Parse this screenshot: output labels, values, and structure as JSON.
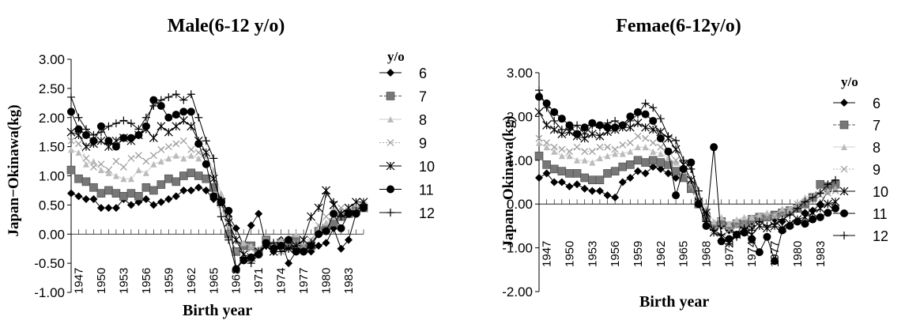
{
  "chart_data": [
    {
      "type": "line",
      "title": "Male(6-12 y/o)",
      "xlabel": "Birth year",
      "ylabel": "Japan−Okinawa(kg)",
      "legend_title": "y/o",
      "legend_position": "right",
      "grid": false,
      "ylim": [
        -1.0,
        3.0
      ],
      "y_ticks": [
        "3.00",
        "2.50",
        "2.00",
        "1.50",
        "1.00",
        "0.50",
        "0.00",
        "-0.50",
        "-1.00"
      ],
      "x_ticks": [
        "1947",
        "1950",
        "1953",
        "1956",
        "1959",
        "1962",
        "1965",
        "1968",
        "1971",
        "1974",
        "1977",
        "1980",
        "1983"
      ],
      "x": [
        1946,
        1947,
        1948,
        1949,
        1950,
        1951,
        1952,
        1953,
        1954,
        1955,
        1956,
        1957,
        1958,
        1959,
        1960,
        1961,
        1962,
        1963,
        1964,
        1965,
        1966,
        1967,
        1968,
        1969,
        1970,
        1971,
        1972,
        1973,
        1974,
        1975,
        1976,
        1977,
        1978,
        1979,
        1980,
        1981,
        1982,
        1983,
        1984,
        1985
      ],
      "series": [
        {
          "name": "6",
          "values": [
            0.7,
            0.65,
            0.6,
            0.6,
            0.45,
            0.45,
            0.45,
            0.6,
            0.5,
            0.55,
            0.6,
            0.5,
            0.55,
            0.6,
            0.65,
            0.75,
            0.75,
            0.8,
            0.75,
            0.6,
            0.6,
            0.3,
            0.1,
            -0.2,
            0.15,
            0.35,
            -0.2,
            -0.3,
            -0.1,
            -0.5,
            -0.3,
            -0.25,
            -0.3,
            -0.2,
            -0.15,
            0.1,
            -0.25,
            -0.1,
            0.35,
            0.5
          ]
        },
        {
          "name": "7",
          "values": [
            1.1,
            0.95,
            0.9,
            0.8,
            0.7,
            0.75,
            0.7,
            0.65,
            0.7,
            0.65,
            0.8,
            0.75,
            0.85,
            0.95,
            0.9,
            1.0,
            1.05,
            1.0,
            0.95,
            0.8,
            0.55,
            0.0,
            -0.3,
            -0.2,
            -0.2,
            -0.3,
            -0.1,
            -0.2,
            -0.15,
            -0.2,
            -0.1,
            -0.25,
            -0.2,
            0.05,
            0.1,
            0.2,
            0.3,
            0.35,
            0.4,
            0.45
          ]
        },
        {
          "name": "8",
          "values": [
            1.45,
            1.4,
            1.2,
            1.25,
            1.1,
            1.05,
            1.0,
            0.95,
            0.95,
            1.1,
            1.05,
            1.2,
            1.25,
            1.3,
            1.35,
            1.3,
            1.35,
            1.3,
            1.35,
            1.1,
            0.7,
            0.3,
            -0.1,
            -0.15,
            -0.2,
            -0.25,
            -0.1,
            -0.15,
            -0.1,
            -0.05,
            0.0,
            -0.1,
            -0.1,
            0.1,
            0.2,
            0.3,
            0.4,
            0.35,
            0.4,
            0.45
          ]
        },
        {
          "name": "9",
          "values": [
            1.6,
            1.55,
            1.3,
            1.15,
            1.2,
            1.1,
            1.25,
            1.15,
            1.3,
            1.35,
            1.25,
            1.35,
            1.45,
            1.5,
            1.55,
            1.6,
            1.45,
            1.4,
            1.35,
            1.0,
            0.5,
            0.1,
            -0.3,
            -0.35,
            -0.25,
            -0.35,
            -0.1,
            -0.2,
            -0.3,
            -0.1,
            -0.15,
            -0.2,
            -0.1,
            0.15,
            0.3,
            0.4,
            0.45,
            0.4,
            0.45,
            0.5
          ]
        },
        {
          "name": "10",
          "values": [
            1.75,
            1.7,
            1.5,
            1.55,
            1.6,
            1.5,
            1.6,
            1.65,
            1.6,
            1.7,
            1.8,
            1.65,
            1.85,
            1.75,
            1.85,
            1.95,
            1.85,
            1.6,
            1.4,
            0.95,
            0.55,
            0.2,
            -0.1,
            -0.35,
            -0.4,
            -0.3,
            -0.2,
            -0.3,
            -0.2,
            -0.25,
            -0.2,
            -0.1,
            0.3,
            0.45,
            0.75,
            0.5,
            0.35,
            0.45,
            0.55,
            0.55
          ]
        },
        {
          "name": "11",
          "values": [
            2.1,
            1.8,
            1.7,
            1.6,
            1.85,
            1.6,
            1.5,
            1.65,
            1.65,
            1.7,
            1.85,
            2.3,
            2.2,
            2.0,
            2.05,
            2.1,
            2.1,
            1.55,
            1.2,
            0.65,
            0.55,
            0.4,
            -0.6,
            -0.45,
            -0.4,
            -0.35,
            -0.15,
            -0.25,
            -0.2,
            -0.1,
            -0.3,
            -0.3,
            -0.2,
            0.0,
            0.05,
            0.35,
            0.1,
            0.35,
            0.35,
            0.45
          ]
        },
        {
          "name": "12",
          "values": [
            2.35,
            2.0,
            1.8,
            1.7,
            1.75,
            1.85,
            1.9,
            1.95,
            1.9,
            1.8,
            2.0,
            2.2,
            2.3,
            2.35,
            2.4,
            2.3,
            2.4,
            2.0,
            1.6,
            1.3,
            0.3,
            -0.1,
            -0.6,
            -0.4,
            -0.5,
            -0.35,
            -0.2,
            -0.15,
            -0.3,
            -0.25,
            -0.2,
            -0.3,
            -0.15,
            0.0,
            0.7,
            0.55,
            0.3,
            0.35,
            0.4,
            0.5
          ]
        }
      ]
    },
    {
      "type": "line",
      "title": "Femae(6-12y/o)",
      "xlabel": "Birth year",
      "ylabel": "Japan−Okinawa(kg)",
      "legend_title": "y/o",
      "legend_position": "right",
      "grid": false,
      "ylim": [
        -2.0,
        3.0
      ],
      "y_ticks": [
        "3.00",
        "2.00",
        "1.00",
        "0.00",
        "-1.00",
        "-2.00"
      ],
      "x_ticks": [
        "1947",
        "1950",
        "1953",
        "1956",
        "1959",
        "1962",
        "1965",
        "1968",
        "1971",
        "1974",
        "1977",
        "1980",
        "1983"
      ],
      "x": [
        1946,
        1947,
        1948,
        1949,
        1950,
        1951,
        1952,
        1953,
        1954,
        1955,
        1956,
        1957,
        1958,
        1959,
        1960,
        1961,
        1962,
        1963,
        1964,
        1965,
        1966,
        1967,
        1968,
        1969,
        1970,
        1971,
        1972,
        1973,
        1974,
        1975,
        1976,
        1977,
        1978,
        1979,
        1980,
        1981,
        1982,
        1983,
        1984,
        1985
      ],
      "series": [
        {
          "name": "6",
          "values": [
            0.6,
            0.7,
            0.5,
            0.5,
            0.4,
            0.45,
            0.35,
            0.3,
            0.3,
            0.2,
            0.15,
            0.5,
            0.6,
            0.75,
            0.7,
            0.85,
            0.8,
            0.7,
            0.6,
            0.6,
            0.45,
            0.1,
            -0.2,
            -0.55,
            -0.5,
            -0.6,
            -0.7,
            -0.4,
            -0.5,
            -0.35,
            -0.3,
            -0.35,
            -0.4,
            -0.2,
            -0.1,
            -0.2,
            -0.15,
            0.0,
            0.3,
            0.4
          ]
        },
        {
          "name": "7",
          "values": [
            1.1,
            0.9,
            0.8,
            0.75,
            0.7,
            0.7,
            0.6,
            0.55,
            0.55,
            0.7,
            0.75,
            0.85,
            0.9,
            1.0,
            0.95,
            1.0,
            0.95,
            0.9,
            0.75,
            0.6,
            0.35,
            0.0,
            -0.3,
            -0.5,
            -0.4,
            -0.5,
            -0.45,
            -0.45,
            -0.35,
            -0.3,
            -0.3,
            -0.25,
            -0.2,
            -0.15,
            -0.1,
            0.0,
            0.15,
            0.45,
            0.4,
            0.45
          ]
        },
        {
          "name": "8",
          "values": [
            1.4,
            1.3,
            1.2,
            1.1,
            1.1,
            1.0,
            1.0,
            0.95,
            1.05,
            1.1,
            1.15,
            1.15,
            1.2,
            1.3,
            1.3,
            1.2,
            1.15,
            1.05,
            0.95,
            0.8,
            0.5,
            0.15,
            -0.1,
            -0.4,
            -0.3,
            -0.45,
            -0.35,
            -0.3,
            -0.3,
            -0.25,
            -0.2,
            -0.25,
            -0.1,
            -0.1,
            0.0,
            0.15,
            0.2,
            0.3,
            0.3,
            0.35
          ]
        },
        {
          "name": "9",
          "values": [
            1.5,
            1.4,
            1.3,
            1.25,
            1.2,
            1.3,
            1.2,
            1.2,
            1.3,
            1.3,
            1.25,
            1.35,
            1.4,
            1.55,
            1.5,
            1.4,
            1.3,
            1.2,
            1.0,
            0.75,
            0.4,
            0.0,
            -0.2,
            -0.6,
            -0.5,
            -0.6,
            -0.5,
            -0.45,
            -0.5,
            -0.35,
            -0.3,
            -0.3,
            -0.25,
            -0.15,
            0.0,
            0.05,
            0.1,
            0.2,
            0.25,
            0.3
          ]
        },
        {
          "name": "10",
          "values": [
            2.1,
            1.8,
            1.7,
            1.6,
            1.65,
            1.55,
            1.5,
            1.6,
            1.55,
            1.65,
            1.7,
            1.75,
            1.75,
            1.85,
            1.75,
            1.7,
            1.65,
            1.5,
            1.25,
            0.9,
            0.55,
            0.05,
            -0.2,
            -0.65,
            -0.75,
            -0.9,
            -0.7,
            -0.6,
            -0.7,
            -0.5,
            -0.55,
            -0.5,
            -0.55,
            -0.45,
            -0.35,
            -0.3,
            -0.2,
            -0.1,
            0.0,
            0.05
          ]
        },
        {
          "name": "11",
          "values": [
            2.45,
            2.3,
            2.1,
            1.95,
            1.8,
            1.6,
            1.75,
            1.85,
            1.8,
            1.75,
            1.75,
            1.8,
            2.0,
            2.1,
            2.05,
            1.9,
            1.5,
            1.2,
            0.2,
            0.8,
            0.95,
            0.0,
            -0.5,
            1.3,
            -0.85,
            -0.8,
            -0.7,
            -0.65,
            -0.8,
            -1.1,
            -0.75,
            -1.3,
            -0.6,
            -0.5,
            -0.4,
            -0.45,
            -0.35,
            -0.3,
            -0.2,
            -0.1
          ]
        },
        {
          "name": "12",
          "values": [
            2.6,
            2.2,
            1.9,
            1.7,
            1.7,
            1.8,
            1.6,
            1.8,
            1.75,
            1.85,
            1.9,
            1.8,
            1.9,
            2.05,
            2.3,
            2.2,
            1.95,
            1.55,
            1.45,
            1.0,
            0.8,
            0.3,
            -0.4,
            -0.6,
            -0.7,
            -0.85,
            -0.75,
            -0.55,
            -0.6,
            -0.4,
            -0.5,
            -0.45,
            -0.35,
            -0.25,
            -0.1,
            0.05,
            0.15,
            0.25,
            0.45,
            0.55
          ]
        }
      ]
    }
  ]
}
